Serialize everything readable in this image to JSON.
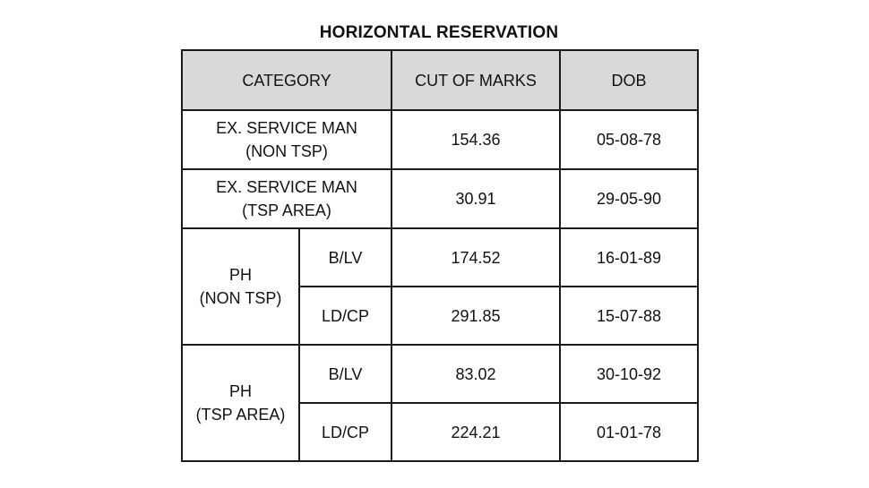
{
  "title": "HORIZONTAL RESERVATION",
  "headers": {
    "category": "CATEGORY",
    "cut_off_marks": "CUT OF MARKS",
    "dob": "DOB"
  },
  "rows": {
    "ex_non_tsp": {
      "category_line1": "EX. SERVICE MAN",
      "category_line2": "(NON TSP)",
      "marks": "154.36",
      "dob": "05-08-78"
    },
    "ex_tsp": {
      "category_line1": "EX. SERVICE MAN",
      "category_line2": "(TSP AREA)",
      "marks": "30.91",
      "dob": "29-05-90"
    },
    "ph_non_tsp": {
      "category_line1": "PH",
      "category_line2": "(NON TSP)",
      "sub": [
        {
          "type": "B/LV",
          "marks": "174.52",
          "dob": "16-01-89"
        },
        {
          "type": "LD/CP",
          "marks": "291.85",
          "dob": "15-07-88"
        }
      ]
    },
    "ph_tsp": {
      "category_line1": "PH",
      "category_line2": "(TSP AREA)",
      "sub": [
        {
          "type": "B/LV",
          "marks": "83.02",
          "dob": "30-10-92"
        },
        {
          "type": "LD/CP",
          "marks": "224.21",
          "dob": "01-01-78"
        }
      ]
    }
  }
}
